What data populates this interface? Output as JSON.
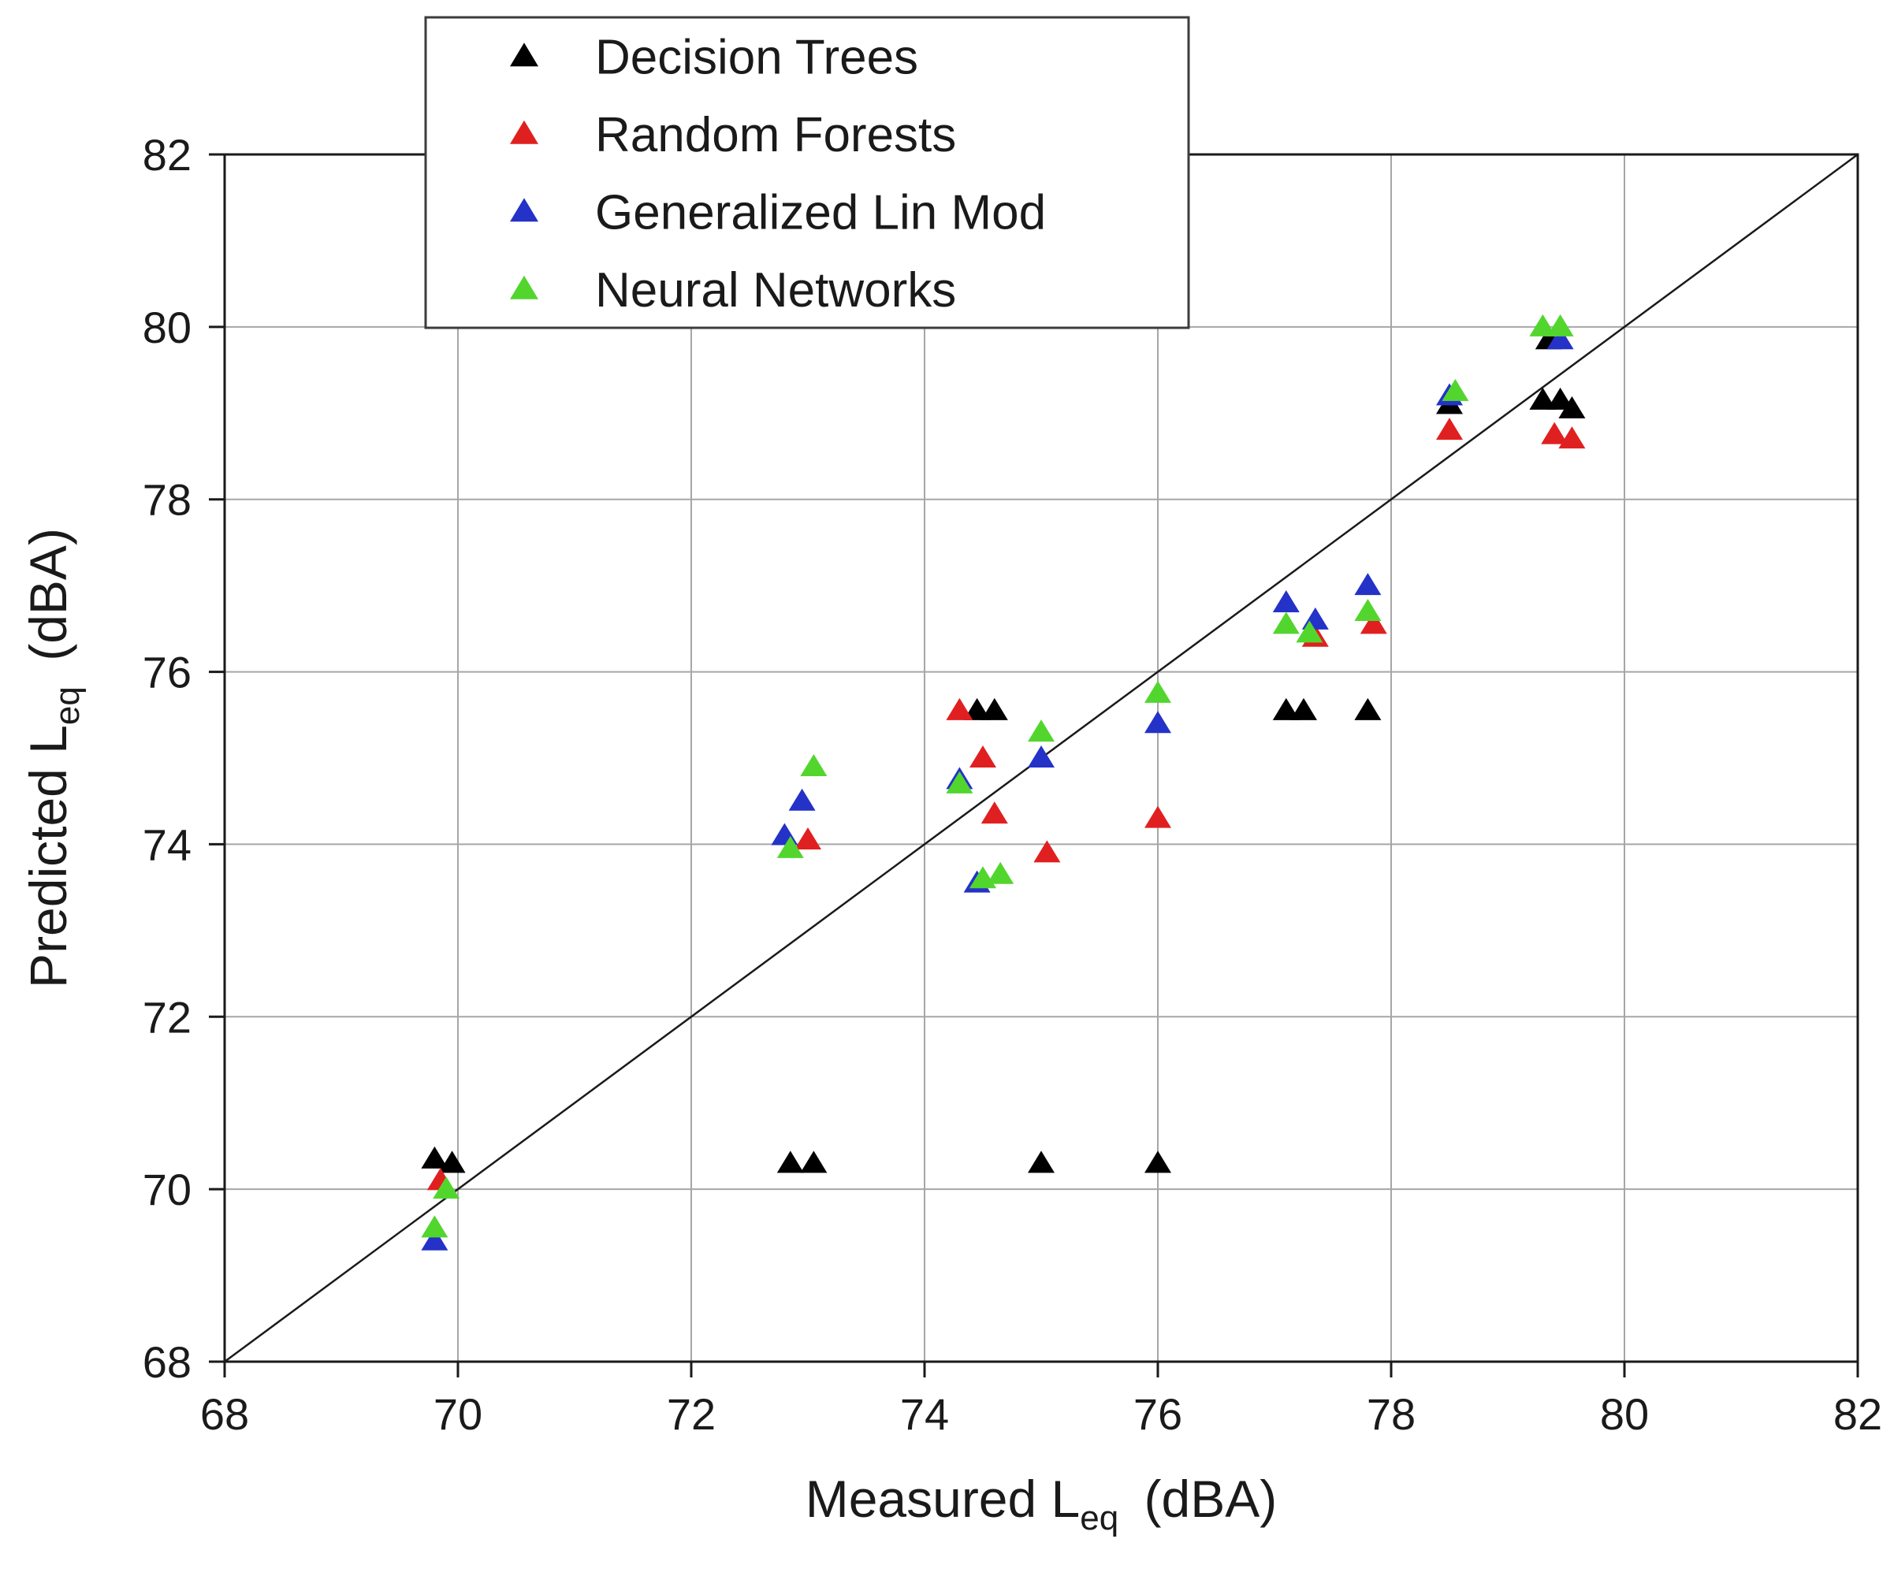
{
  "page": {
    "background": "#ffffff"
  },
  "chart_data": {
    "type": "scatter",
    "title": "",
    "xlabel": "Measured L_eq (dBA)",
    "ylabel": "Predicted L_eq (dBA)",
    "xlabel_parts": {
      "pre": "Measured L",
      "sub": "eq",
      "post": " (dBA)"
    },
    "ylabel_parts": {
      "pre": "Predicted L",
      "sub": "eq",
      "post": " (dBA)"
    },
    "xlim": [
      68,
      82
    ],
    "ylim": [
      68,
      82
    ],
    "xticks": [
      68,
      70,
      72,
      74,
      76,
      78,
      80,
      82
    ],
    "yticks": [
      68,
      70,
      72,
      74,
      76,
      78,
      80,
      82
    ],
    "grid": true,
    "legend_position": "top-left-inside",
    "identity_line": {
      "x1": 68,
      "y1": 68,
      "x2": 82,
      "y2": 82
    },
    "style": {
      "grid_color": "#a6a6a6",
      "axis_color": "#1a1a1a",
      "text_color": "#1a1a1a",
      "legend_border": "#3c3c3c",
      "legend_background": "#ffffff",
      "background": "#ffffff"
    },
    "series": [
      {
        "name": "Decision Trees",
        "color": "#000000",
        "marker": "triangle-up",
        "points": [
          [
            69.8,
            70.35
          ],
          [
            69.95,
            70.3
          ],
          [
            72.85,
            70.3
          ],
          [
            73.05,
            70.3
          ],
          [
            74.45,
            75.55
          ],
          [
            74.6,
            75.55
          ],
          [
            75.0,
            70.3
          ],
          [
            76.0,
            70.3
          ],
          [
            77.1,
            75.55
          ],
          [
            77.25,
            75.55
          ],
          [
            77.8,
            75.55
          ],
          [
            78.5,
            79.1
          ],
          [
            79.35,
            79.85
          ],
          [
            79.3,
            79.15
          ],
          [
            79.45,
            79.15
          ],
          [
            79.55,
            79.05
          ]
        ]
      },
      {
        "name": "Random Forests",
        "color": "#e02020",
        "marker": "triangle-up",
        "points": [
          [
            69.85,
            70.1
          ],
          [
            73.0,
            74.05
          ],
          [
            74.3,
            75.55
          ],
          [
            74.5,
            75.0
          ],
          [
            74.6,
            74.35
          ],
          [
            75.05,
            73.9
          ],
          [
            76.0,
            74.3
          ],
          [
            77.35,
            76.4
          ],
          [
            77.85,
            76.55
          ],
          [
            78.5,
            78.8
          ],
          [
            79.4,
            78.75
          ],
          [
            79.55,
            78.7
          ]
        ]
      },
      {
        "name": "Generalized Lin Mod",
        "color": "#2432c8",
        "marker": "triangle-up",
        "points": [
          [
            69.8,
            69.4
          ],
          [
            72.8,
            74.1
          ],
          [
            72.95,
            74.5
          ],
          [
            74.3,
            74.75
          ],
          [
            74.45,
            73.55
          ],
          [
            75.0,
            75.0
          ],
          [
            76.0,
            75.4
          ],
          [
            77.1,
            76.8
          ],
          [
            77.35,
            76.6
          ],
          [
            77.8,
            77.0
          ],
          [
            78.5,
            79.2
          ],
          [
            79.45,
            79.85
          ]
        ]
      },
      {
        "name": "Neural Networks",
        "color": "#52d62e",
        "marker": "triangle-up",
        "points": [
          [
            69.8,
            69.55
          ],
          [
            69.9,
            70.0
          ],
          [
            72.85,
            73.95
          ],
          [
            73.05,
            74.9
          ],
          [
            74.3,
            74.7
          ],
          [
            74.5,
            73.6
          ],
          [
            74.65,
            73.65
          ],
          [
            75.0,
            75.3
          ],
          [
            76.0,
            75.75
          ],
          [
            77.1,
            76.55
          ],
          [
            77.3,
            76.45
          ],
          [
            77.8,
            76.7
          ],
          [
            78.55,
            79.25
          ],
          [
            79.3,
            80.0
          ],
          [
            79.45,
            80.0
          ]
        ]
      }
    ]
  }
}
